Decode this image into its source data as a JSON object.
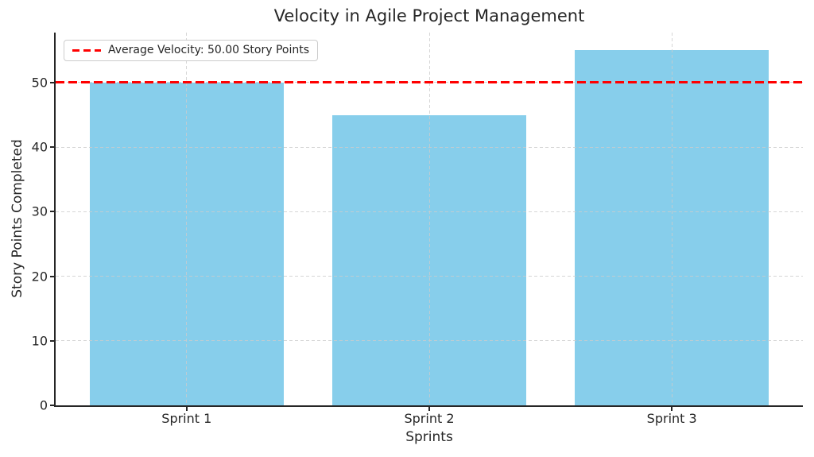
{
  "chart_data": {
    "type": "bar",
    "title": "Velocity in Agile Project Management",
    "xlabel": "Sprints",
    "ylabel": "Story Points Completed",
    "categories": [
      "Sprint 1",
      "Sprint 2",
      "Sprint 3"
    ],
    "values": [
      50,
      45,
      55
    ],
    "yticks": [
      0,
      10,
      20,
      30,
      40,
      50
    ],
    "ylim": [
      0,
      57.75
    ],
    "xlim": [
      -0.54,
      2.54
    ],
    "bar_width": 0.8,
    "bar_color": "#87CEEB",
    "grid": true,
    "grid_style": "dashed",
    "grid_color": "#cccccc",
    "text_color": "#262626",
    "spine_color": "#262626",
    "legend_position": "upper left",
    "average_line": {
      "value": 50,
      "color": "#FF0000",
      "style": "dashed",
      "label": "Average Velocity: 50.00 Story Points"
    }
  }
}
